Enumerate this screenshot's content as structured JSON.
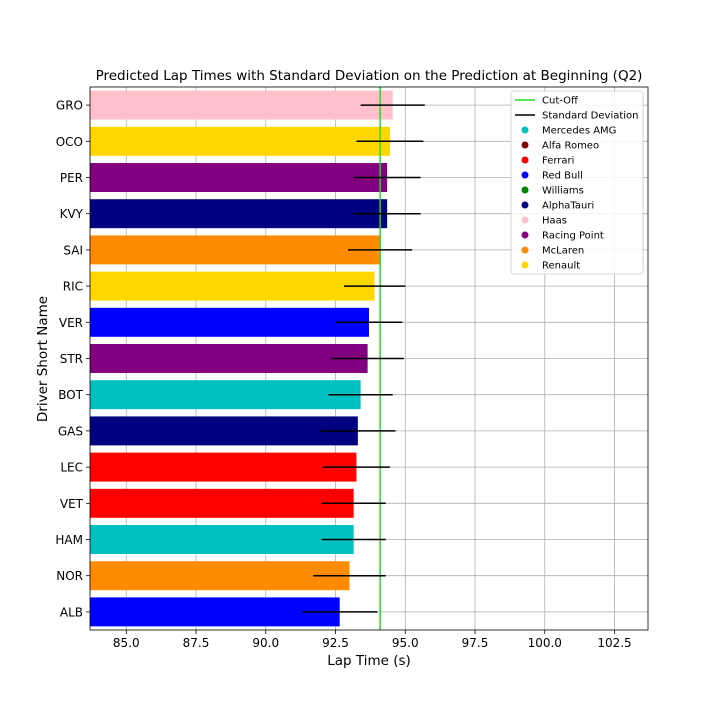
{
  "chart_data": {
    "type": "bar",
    "orientation": "horizontal",
    "title": "Predicted Lap Times with Standard Deviation on the Prediction at Beginning (Q2)",
    "xlabel": "Lap Time (s)",
    "ylabel": "Driver Short Name",
    "xlim": [
      83.7,
      103.7
    ],
    "xticks": [
      "85.0",
      "87.5",
      "90.0",
      "92.5",
      "95.0",
      "97.5",
      "100.0",
      "102.5"
    ],
    "grid": true,
    "cutoff": 94.1,
    "legend_position": "top-right",
    "legend": [
      {
        "label": "Cut-Off",
        "kind": "line",
        "color": "#22dd22"
      },
      {
        "label": "Standard Deviation",
        "kind": "line",
        "color": "#000000"
      },
      {
        "label": "Mercedes AMG",
        "kind": "marker",
        "color": "#00c0c0"
      },
      {
        "label": "Alfa Romeo",
        "kind": "marker",
        "color": "#800000"
      },
      {
        "label": "Ferrari",
        "kind": "marker",
        "color": "#ff0000"
      },
      {
        "label": "Red Bull",
        "kind": "marker",
        "color": "#0000ff"
      },
      {
        "label": "Williams",
        "kind": "marker",
        "color": "#008000"
      },
      {
        "label": "AlphaTauri",
        "kind": "marker",
        "color": "#000080"
      },
      {
        "label": "Haas",
        "kind": "marker",
        "color": "#ffc0cb"
      },
      {
        "label": "Racing Point",
        "kind": "marker",
        "color": "#800080"
      },
      {
        "label": "McLaren",
        "kind": "marker",
        "color": "#ff8c00"
      },
      {
        "label": "Renault",
        "kind": "marker",
        "color": "#ffd700"
      }
    ],
    "bars": [
      {
        "driver": "ALB",
        "value": 92.65,
        "std": 1.35,
        "color": "#0000ff"
      },
      {
        "driver": "NOR",
        "value": 93.0,
        "std": 1.3,
        "color": "#ff8c00"
      },
      {
        "driver": "HAM",
        "value": 93.15,
        "std": 1.15,
        "color": "#00c0c0"
      },
      {
        "driver": "VET",
        "value": 93.15,
        "std": 1.15,
        "color": "#ff0000"
      },
      {
        "driver": "LEC",
        "value": 93.25,
        "std": 1.2,
        "color": "#ff0000"
      },
      {
        "driver": "GAS",
        "value": 93.3,
        "std": 1.35,
        "color": "#000080"
      },
      {
        "driver": "BOT",
        "value": 93.4,
        "std": 1.15,
        "color": "#00c0c0"
      },
      {
        "driver": "STR",
        "value": 93.65,
        "std": 1.3,
        "color": "#800080"
      },
      {
        "driver": "VER",
        "value": 93.7,
        "std": 1.2,
        "color": "#0000ff"
      },
      {
        "driver": "RIC",
        "value": 93.9,
        "std": 1.1,
        "color": "#ffd700"
      },
      {
        "driver": "SAI",
        "value": 94.1,
        "std": 1.15,
        "color": "#ff8c00"
      },
      {
        "driver": "KVY",
        "value": 94.35,
        "std": 1.2,
        "color": "#000080"
      },
      {
        "driver": "PER",
        "value": 94.35,
        "std": 1.2,
        "color": "#800080"
      },
      {
        "driver": "OCO",
        "value": 94.45,
        "std": 1.2,
        "color": "#ffd700"
      },
      {
        "driver": "GRO",
        "value": 94.55,
        "std": 1.15,
        "color": "#ffc0cb"
      }
    ]
  }
}
